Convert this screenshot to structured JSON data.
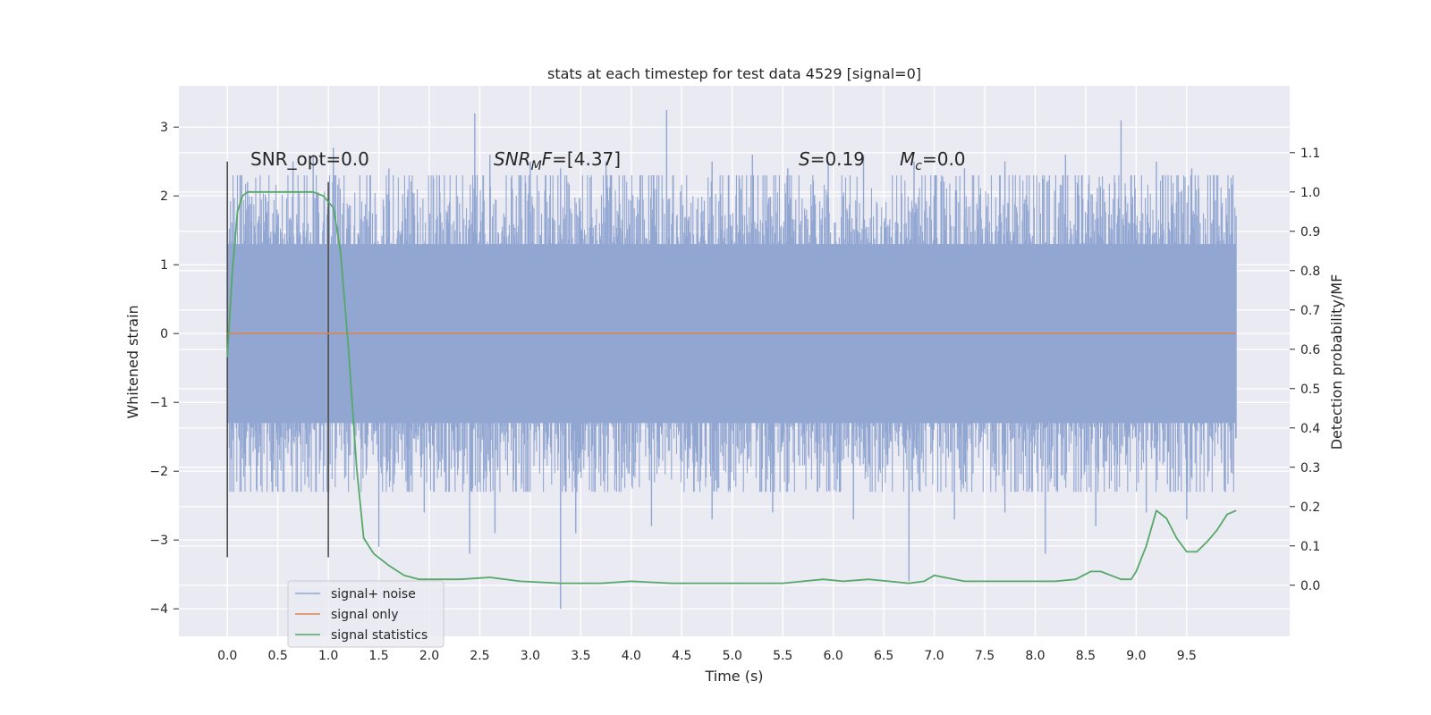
{
  "chart_data": {
    "type": "line",
    "title": "stats at each timestep for test data 4529 [signal=0]",
    "xlabel": "Time (s)",
    "ylabel": "Whitened strain",
    "y2label": "Detection probability/MF",
    "xlim": [
      -0.48,
      10.52
    ],
    "ylim": [
      -4.4,
      3.6
    ],
    "y2lim": [
      -0.13,
      1.27
    ],
    "x_ticks": [
      0.0,
      0.5,
      1.0,
      1.5,
      2.0,
      2.5,
      3.0,
      3.5,
      4.0,
      4.5,
      5.0,
      5.5,
      6.0,
      6.5,
      7.0,
      7.5,
      8.0,
      8.5,
      9.0,
      9.5
    ],
    "x_tick_labels": [
      "0.0",
      "0.5",
      "1.0",
      "1.5",
      "2.0",
      "2.5",
      "3.0",
      "3.5",
      "4.0",
      "4.5",
      "5.0",
      "5.5",
      "6.0",
      "6.5",
      "7.0",
      "7.5",
      "8.0",
      "8.5",
      "9.0",
      "9.5"
    ],
    "y_ticks": [
      -4,
      -3,
      -2,
      -1,
      0,
      1,
      2,
      3
    ],
    "y_tick_labels": [
      "−4",
      "−3",
      "−2",
      "−1",
      "0",
      "1",
      "2",
      "3"
    ],
    "y2_ticks": [
      0.0,
      0.1,
      0.2,
      0.3,
      0.4,
      0.5,
      0.6,
      0.7,
      0.8,
      0.9,
      1.0,
      1.1
    ],
    "y2_tick_labels": [
      "0.0",
      "0.1",
      "0.2",
      "0.3",
      "0.4",
      "0.5",
      "0.6",
      "0.7",
      "0.8",
      "0.9",
      "1.0",
      "1.1"
    ],
    "grid": true,
    "legend_position": "lower-left",
    "annotations": {
      "snr_opt": "SNR_opt=0.0",
      "snr_mf_label": "SNR",
      "snr_mf_sub": "M",
      "snr_mf_suffix": "F",
      "snr_mf_value": "=[4.37]",
      "s_label": "S",
      "s_value": "=0.19",
      "mc_label": "M",
      "mc_sub": "c",
      "mc_value": "=0.0"
    },
    "series": [
      {
        "name": "signal+ noise",
        "color": "#92a6d2",
        "x_range": [
          0.0,
          9.99
        ],
        "envelope_core": [
          -1.3,
          1.3
        ],
        "peaks_max": [
          [
            0.2,
            2.2
          ],
          [
            0.65,
            2.5
          ],
          [
            0.85,
            2.6
          ],
          [
            1.05,
            2.7
          ],
          [
            1.6,
            2.4
          ],
          [
            2.1,
            2.3
          ],
          [
            2.45,
            3.2
          ],
          [
            2.6,
            2.6
          ],
          [
            3.0,
            2.5
          ],
          [
            3.3,
            2.4
          ],
          [
            3.75,
            2.5
          ],
          [
            4.35,
            3.25
          ],
          [
            4.8,
            2.5
          ],
          [
            5.2,
            2.6
          ],
          [
            5.55,
            2.4
          ],
          [
            5.95,
            2.5
          ],
          [
            6.3,
            2.6
          ],
          [
            6.8,
            2.5
          ],
          [
            7.3,
            2.4
          ],
          [
            7.7,
            2.5
          ],
          [
            8.3,
            2.6
          ],
          [
            8.85,
            3.1
          ],
          [
            9.2,
            2.5
          ],
          [
            9.55,
            2.4
          ]
        ],
        "peaks_min": [
          [
            0.0,
            -2.7
          ],
          [
            0.5,
            -2.3
          ],
          [
            1.0,
            -2.4
          ],
          [
            1.5,
            -3.1
          ],
          [
            1.95,
            -2.6
          ],
          [
            2.4,
            -3.2
          ],
          [
            2.65,
            -2.9
          ],
          [
            3.3,
            -4.0
          ],
          [
            3.45,
            -2.9
          ],
          [
            4.2,
            -2.8
          ],
          [
            4.8,
            -2.7
          ],
          [
            5.4,
            -2.6
          ],
          [
            6.2,
            -2.7
          ],
          [
            6.75,
            -3.6
          ],
          [
            7.2,
            -2.7
          ],
          [
            7.7,
            -2.6
          ],
          [
            8.1,
            -3.2
          ],
          [
            8.6,
            -2.8
          ],
          [
            9.1,
            -2.6
          ],
          [
            9.5,
            -2.7
          ]
        ]
      },
      {
        "name": "signal only",
        "color": "#dd8452",
        "x": [
          0.0,
          9.99
        ],
        "values": [
          0.0,
          0.0
        ]
      },
      {
        "name": "signal statistics",
        "color": "#55a868",
        "axis": "right",
        "x": [
          0.0,
          0.05,
          0.1,
          0.15,
          0.2,
          0.3,
          0.5,
          0.7,
          0.85,
          0.95,
          1.05,
          1.12,
          1.2,
          1.28,
          1.35,
          1.45,
          1.6,
          1.75,
          1.9,
          2.1,
          2.3,
          2.6,
          2.9,
          3.3,
          3.7,
          4.0,
          4.4,
          4.8,
          5.2,
          5.5,
          5.7,
          5.9,
          6.1,
          6.35,
          6.55,
          6.75,
          6.9,
          7.0,
          7.1,
          7.3,
          7.6,
          7.9,
          8.2,
          8.4,
          8.55,
          8.65,
          8.75,
          8.85,
          8.95,
          9.0,
          9.1,
          9.2,
          9.3,
          9.4,
          9.5,
          9.6,
          9.7,
          9.8,
          9.9,
          9.99
        ],
        "values": [
          0.58,
          0.8,
          0.95,
          0.99,
          1.0,
          1.0,
          1.0,
          1.0,
          1.0,
          0.99,
          0.96,
          0.85,
          0.6,
          0.3,
          0.12,
          0.08,
          0.05,
          0.025,
          0.015,
          0.015,
          0.015,
          0.02,
          0.01,
          0.005,
          0.005,
          0.01,
          0.005,
          0.005,
          0.005,
          0.005,
          0.01,
          0.015,
          0.01,
          0.015,
          0.01,
          0.005,
          0.01,
          0.025,
          0.02,
          0.01,
          0.01,
          0.01,
          0.01,
          0.015,
          0.035,
          0.035,
          0.025,
          0.015,
          0.015,
          0.035,
          0.1,
          0.19,
          0.17,
          0.12,
          0.085,
          0.085,
          0.11,
          0.14,
          0.18,
          0.19
        ]
      }
    ],
    "vertical_markers": [
      {
        "x": 0.0,
        "y_range": [
          -3.25,
          2.5
        ]
      },
      {
        "x": 1.0,
        "y_range": [
          -3.25,
          2.2
        ]
      }
    ]
  }
}
